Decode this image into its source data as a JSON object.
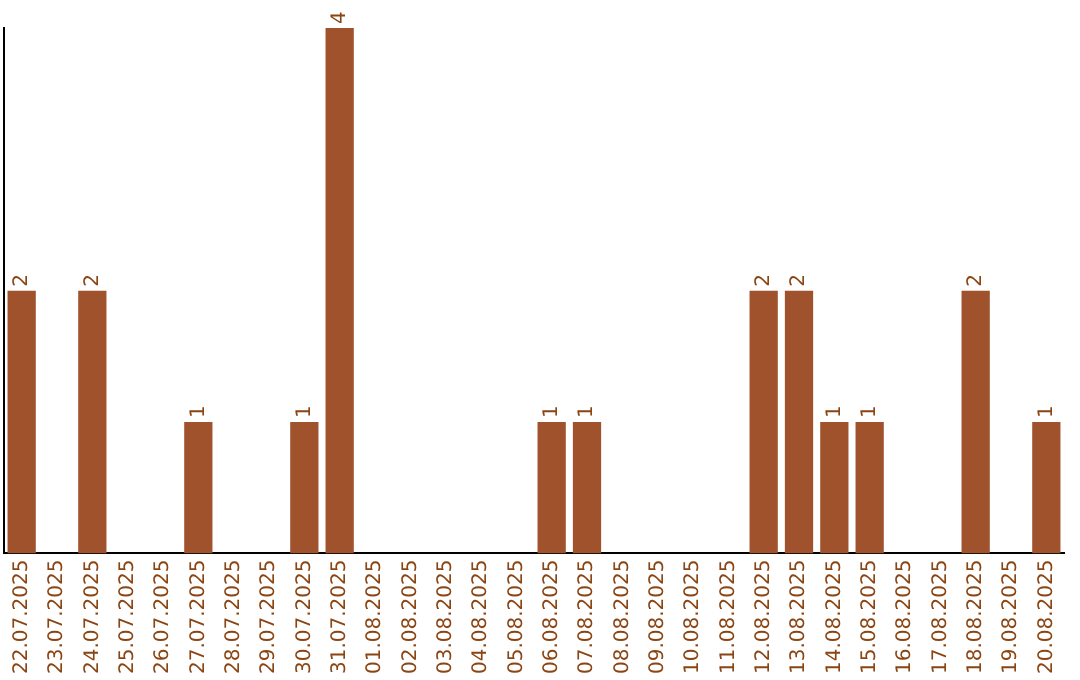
{
  "chart_data": {
    "type": "bar",
    "categories": [
      "22.07.2025",
      "23.07.2025",
      "24.07.2025",
      "25.07.2025",
      "26.07.2025",
      "27.07.2025",
      "28.07.2025",
      "29.07.2025",
      "30.07.2025",
      "31.07.2025",
      "01.08.2025",
      "02.08.2025",
      "03.08.2025",
      "04.08.2025",
      "05.08.2025",
      "06.08.2025",
      "07.08.2025",
      "08.08.2025",
      "09.08.2025",
      "10.08.2025",
      "11.08.2025",
      "12.08.2025",
      "13.08.2025",
      "14.08.2025",
      "15.08.2025",
      "16.08.2025",
      "17.08.2025",
      "18.08.2025",
      "19.08.2025",
      "20.08.2025"
    ],
    "values": [
      2,
      0,
      2,
      0,
      0,
      1,
      0,
      0,
      1,
      4,
      0,
      0,
      0,
      0,
      0,
      1,
      1,
      0,
      0,
      0,
      0,
      2,
      2,
      1,
      1,
      0,
      0,
      2,
      0,
      1
    ],
    "value_labels": [
      "2",
      null,
      "2",
      null,
      null,
      "1",
      null,
      null,
      "1",
      "4",
      null,
      null,
      null,
      null,
      null,
      "1",
      "1",
      null,
      null,
      null,
      null,
      "2",
      "2",
      "1",
      "1",
      null,
      null,
      "2",
      null,
      "1"
    ],
    "color": "#a0522d",
    "grid": false,
    "legend": false,
    "tick_labels": "x"
  }
}
